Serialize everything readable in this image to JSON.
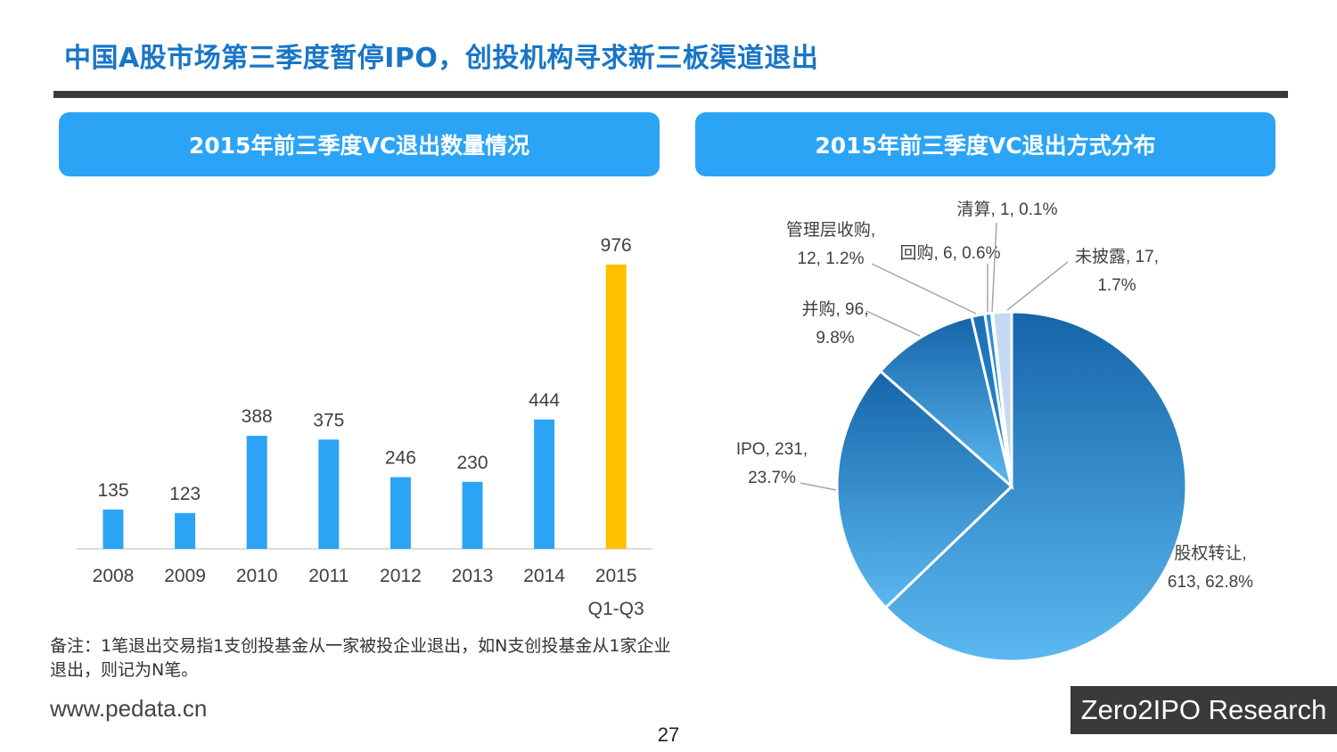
{
  "slide": {
    "title": "中国A股市场第三季度暂停IPO，创投机构寻求新三板渠道退出",
    "left_panel_title": "2015年前三季度VC退出数量情况",
    "right_panel_title": "2015年前三季度VC退出方式分布",
    "note": "备注：1笔退出交易指1支创投基金从一家被投企业退出，如N支创投基金从1家企业退出，则记为N笔。",
    "website": "www.pedata.cn",
    "page_number": "27",
    "brand": "Zero2IPO Research"
  },
  "colors": {
    "title": "#1976c6",
    "header_bg": "#2ca4f5",
    "bar_default": "#2ca4f5",
    "bar_highlight": "#ffc000",
    "pie_dark": "#1565a8",
    "pie_light": "#5bb8f0",
    "pie_pale": "#c5daf2"
  },
  "chart_data": [
    {
      "type": "bar",
      "categories": [
        "2008",
        "2009",
        "2010",
        "2011",
        "2012",
        "2013",
        "2014",
        "2015\nQ1-Q3"
      ],
      "category_lines": [
        [
          "2008"
        ],
        [
          "2009"
        ],
        [
          "2010"
        ],
        [
          "2011"
        ],
        [
          "2012"
        ],
        [
          "2013"
        ],
        [
          "2014"
        ],
        [
          "2015",
          "Q1-Q3"
        ]
      ],
      "values": [
        135,
        123,
        388,
        375,
        246,
        230,
        444,
        976
      ],
      "highlight_index": 7,
      "ylim": [
        0,
        1000
      ],
      "grid": false
    },
    {
      "type": "pie",
      "slices": [
        {
          "name": "股权转让",
          "count": 613,
          "percent": 62.8,
          "label_lines": [
            "股权转让,",
            "613, 62.8%"
          ]
        },
        {
          "name": "IPO",
          "count": 231,
          "percent": 23.7,
          "label_lines": [
            "IPO, 231,",
            "23.7%"
          ]
        },
        {
          "name": "并购",
          "count": 96,
          "percent": 9.8,
          "label_lines": [
            "并购, 96,",
            "9.8%"
          ]
        },
        {
          "name": "管理层收购",
          "count": 12,
          "percent": 1.2,
          "label_lines": [
            "管理层收购,",
            "12, 1.2%"
          ]
        },
        {
          "name": "回购",
          "count": 6,
          "percent": 0.6,
          "label_lines": [
            "回购, 6, 0.6%"
          ]
        },
        {
          "name": "清算",
          "count": 1,
          "percent": 0.1,
          "label_lines": [
            "清算, 1, 0.1%"
          ]
        },
        {
          "name": "未披露",
          "count": 17,
          "percent": 1.7,
          "label_lines": [
            "未披露, 17,",
            "1.7%"
          ]
        }
      ]
    }
  ]
}
